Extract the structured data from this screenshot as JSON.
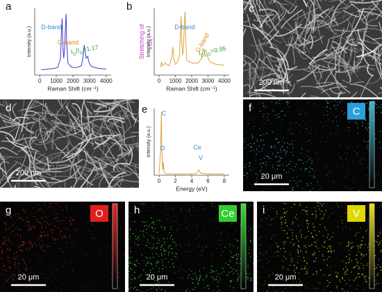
{
  "chart_data": [
    {
      "type": "line",
      "panel_label": "a",
      "xlabel": "Raman Shift (cm⁻¹)",
      "ylabel": "Intensity (a.u.)",
      "x": [
        100,
        500,
        900,
        1100,
        1250,
        1300,
        1350,
        1400,
        1450,
        1500,
        1560,
        1590,
        1620,
        1700,
        1900,
        2200,
        2500,
        2600,
        2680,
        2720,
        2800,
        2900,
        2950,
        3100,
        3500,
        4000
      ],
      "series": [
        {
          "color": "#3b3bd0",
          "values": [
            8,
            9,
            10,
            12,
            25,
            60,
            85,
            40,
            25,
            40,
            80,
            92,
            50,
            18,
            12,
            11,
            14,
            25,
            45,
            38,
            25,
            28,
            20,
            13,
            10,
            9
          ]
        }
      ],
      "xlim": [
        -300,
        4300
      ],
      "xticks": [
        0,
        1000,
        2000,
        3000,
        4000
      ],
      "ylim": [
        0,
        100
      ],
      "annotations": [
        {
          "parts": [
            "D-band"
          ],
          "color": "#3a8fd0"
        },
        {
          "parts": [
            "G-band"
          ],
          "color": "#e08a20"
        },
        {
          "parts": [
            "I",
            "D",
            "/I",
            "G",
            "=1.17"
          ],
          "color": "#2aa84a"
        }
      ]
    },
    {
      "type": "line",
      "panel_label": "b",
      "xlabel": "Raman Shift (cm⁻¹)",
      "ylabel": "Intensity (a.u.)",
      "x": [
        100,
        150,
        200,
        300,
        400,
        500,
        600,
        700,
        800,
        850,
        900,
        1000,
        1100,
        1250,
        1300,
        1350,
        1400,
        1450,
        1500,
        1560,
        1600,
        1640,
        1700,
        2000,
        2400,
        2600,
        2700,
        2750,
        2850,
        2950,
        3100,
        3500,
        4000
      ],
      "series": [
        {
          "color": "#d9a33a",
          "values": [
            12,
            20,
            14,
            16,
            18,
            15,
            14,
            20,
            30,
            42,
            25,
            16,
            18,
            30,
            60,
            88,
            45,
            30,
            45,
            82,
            95,
            50,
            22,
            18,
            18,
            25,
            40,
            35,
            28,
            30,
            20,
            16,
            15
          ]
        }
      ],
      "xlim": [
        -300,
        4300
      ],
      "xticks": [
        0,
        1000,
        2000,
        3000,
        4000
      ],
      "ylim": [
        0,
        100
      ],
      "annotations": [
        {
          "parts": [
            "Stretching of"
          ],
          "color": "#c040c0"
        },
        {
          "parts": [
            "VO₄³⁻"
          ],
          "color": "#c040c0"
        },
        {
          "parts": [
            "D-band"
          ],
          "color": "#3a8fd0"
        },
        {
          "parts": [
            "G-band"
          ],
          "color": "#e08a20"
        },
        {
          "parts": [
            "I",
            "D",
            "/I",
            "G",
            "=0.95"
          ],
          "color": "#2aa84a"
        }
      ]
    },
    {
      "type": "line",
      "panel_label": "e",
      "xlabel": "Energy (eV)",
      "ylabel": "Intensity (a.u.)",
      "x": [
        0,
        0.2,
        0.28,
        0.35,
        0.45,
        0.52,
        0.6,
        0.8,
        2,
        4,
        4.6,
        4.84,
        4.95,
        5.1,
        6,
        8
      ],
      "series": [
        {
          "color": "#d9a33a",
          "values": [
            2,
            40,
            95,
            30,
            8,
            20,
            5,
            2,
            2,
            2,
            3,
            8,
            6,
            3,
            2,
            2
          ]
        }
      ],
      "xlim": [
        -0.6,
        8.6
      ],
      "xticks": [
        0,
        2,
        4,
        6,
        8
      ],
      "ylim": [
        0,
        100
      ],
      "annotations": [
        {
          "parts": [
            "C"
          ],
          "color": "#3a8fd0"
        },
        {
          "parts": [
            "O"
          ],
          "color": "#3a8fd0"
        },
        {
          "parts": [
            "Ce"
          ],
          "color": "#3a8fd0"
        },
        {
          "parts": [
            "V"
          ],
          "color": "#3a8fd0"
        }
      ]
    }
  ],
  "panels": [
    {
      "label": "c",
      "scale_bar": "200 nm"
    },
    {
      "label": "d",
      "scale_bar": "200 nm"
    },
    {
      "label": "f",
      "element": "C",
      "scale_bar": "20 μm"
    },
    {
      "label": "g",
      "element": "O",
      "scale_bar": "20 μm"
    },
    {
      "label": "h",
      "element": "Ce",
      "scale_bar": "20 μm"
    },
    {
      "label": "i",
      "element": "V",
      "scale_bar": "20 μm"
    }
  ]
}
